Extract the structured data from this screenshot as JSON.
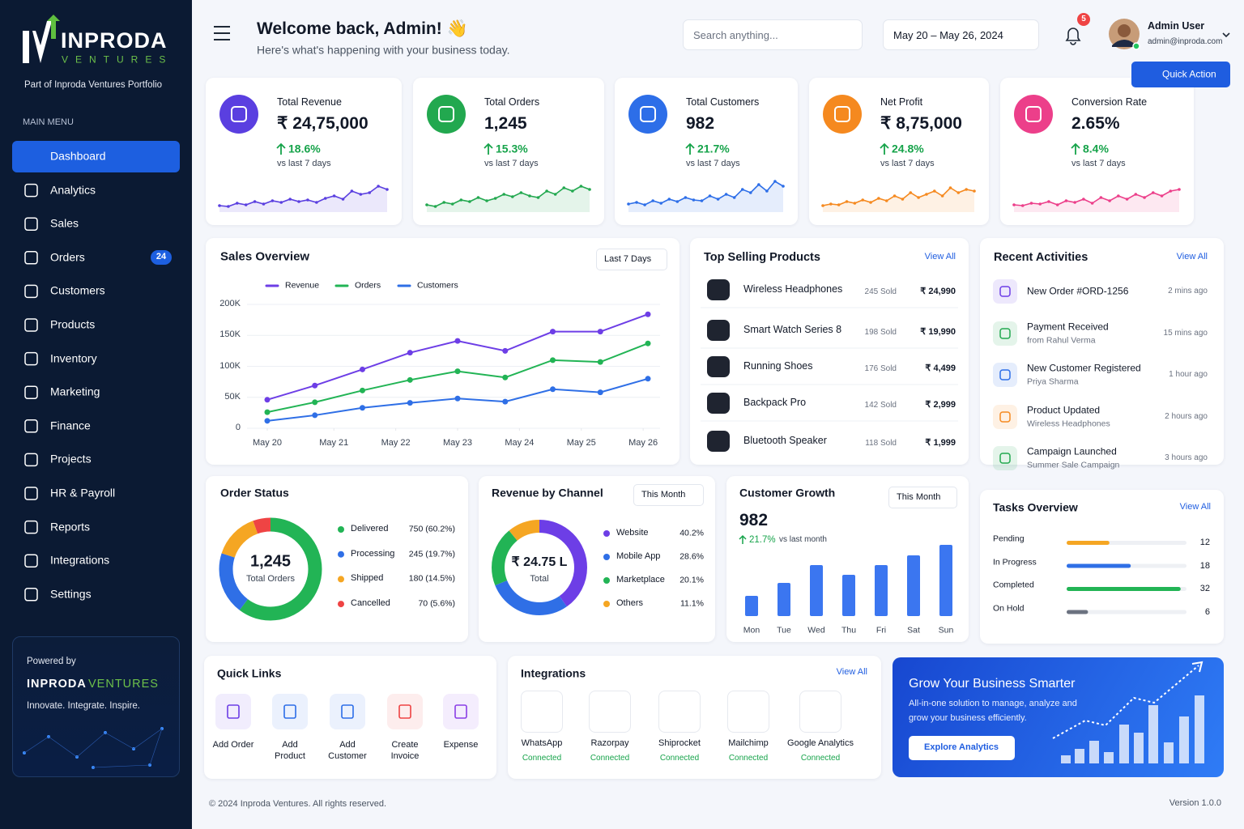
{
  "sidebar": {
    "brand": "INPRODA",
    "brand_sub": "VENTURES",
    "tagline": "Part of Inproda Ventures Portfolio",
    "menu_label": "MAIN MENU",
    "active": 0,
    "menu": [
      {
        "label": "Dashboard"
      },
      {
        "label": "Analytics"
      },
      {
        "label": "Sales"
      },
      {
        "label": "Orders",
        "badge": 24
      },
      {
        "label": "Customers"
      },
      {
        "label": "Products"
      },
      {
        "label": "Inventory"
      },
      {
        "label": "Marketing"
      },
      {
        "label": "Finance"
      },
      {
        "label": "Projects"
      },
      {
        "label": "HR & Payroll"
      },
      {
        "label": "Reports"
      },
      {
        "label": "Integrations"
      },
      {
        "label": "Settings"
      }
    ],
    "powered": {
      "label": "Powered by",
      "name": "INPRODA",
      "accent": "VENTURES",
      "slogan": "Innovate. Integrate. Inspire."
    }
  },
  "header": {
    "title": "Welcome back, Admin! 👋",
    "subtitle": "Here's what's happening with your business today.",
    "search": "Search anything...",
    "date_range": "May 20 – May 26, 2024",
    "notifications": 5,
    "user_name": "Admin User",
    "user_email": "admin@inproda.com",
    "quick_action": "Quick Action"
  },
  "kpis": [
    {
      "label": "Total Revenue",
      "value": "₹ 24,75,000",
      "change": "18.6%",
      "note": "vs last 7 days",
      "color": "#5a3fe0",
      "trend": [
        4,
        3,
        7,
        5,
        9,
        6,
        10,
        8,
        12,
        9,
        11,
        8,
        13,
        16,
        12,
        22,
        18,
        20,
        28,
        24
      ]
    },
    {
      "label": "Total Orders",
      "value": "1,245",
      "change": "15.3%",
      "note": "vs last 7 days",
      "color": "#22a84f",
      "trend": [
        5,
        3,
        8,
        6,
        11,
        9,
        14,
        10,
        13,
        18,
        15,
        20,
        16,
        14,
        22,
        18,
        26,
        22,
        28,
        24
      ]
    },
    {
      "label": "Total Customers",
      "value": "982",
      "change": "21.7%",
      "note": "vs last 7 days",
      "color": "#2d6ee8",
      "trend": [
        6,
        8,
        5,
        10,
        7,
        12,
        9,
        14,
        11,
        10,
        16,
        12,
        18,
        14,
        24,
        20,
        30,
        22,
        34,
        28
      ]
    },
    {
      "label": "Net Profit",
      "value": "₹ 8,75,000",
      "change": "24.8%",
      "note": "vs last 7 days",
      "color": "#f5891f",
      "trend": [
        4,
        6,
        5,
        9,
        7,
        11,
        8,
        13,
        10,
        16,
        12,
        20,
        14,
        18,
        22,
        16,
        26,
        20,
        24,
        22
      ]
    },
    {
      "label": "Conversion Rate",
      "value": "2.65%",
      "change": "8.4%",
      "note": "vs last 7 days",
      "color": "#ec3f8a",
      "trend": [
        5,
        4,
        7,
        6,
        9,
        5,
        10,
        8,
        12,
        7,
        14,
        10,
        16,
        12,
        18,
        14,
        20,
        16,
        22,
        24
      ]
    }
  ],
  "sales_overview": {
    "title": "Sales Overview",
    "filter": "Last 7 Days",
    "chart_data": {
      "type": "line",
      "x": [
        0,
        1,
        2,
        3,
        4,
        5,
        6,
        7,
        8
      ],
      "xlim": [
        0,
        8
      ],
      "xticks": [
        {
          "value": 0,
          "label": "May 20"
        },
        {
          "value": 1.4,
          "label": "May 21"
        },
        {
          "value": 2.7,
          "label": "May 22"
        },
        {
          "value": 4,
          "label": "May 23"
        },
        {
          "value": 5.3,
          "label": "May 24"
        },
        {
          "value": 6.6,
          "label": "May 25"
        },
        {
          "value": 7.9,
          "label": "May 26"
        }
      ],
      "ylim": [
        0,
        200000
      ],
      "yticks": [
        0,
        {
          "value": 50000,
          "label": "50K"
        },
        {
          "value": 100000,
          "label": "100K"
        },
        {
          "value": 150000,
          "label": "150K"
        },
        {
          "value": 200000,
          "label": "200K"
        }
      ],
      "grid": true,
      "legend": "top",
      "series": [
        {
          "name": "Revenue",
          "color": "#6d3ee6",
          "values": [
            46000,
            69000,
            95000,
            122000,
            141000,
            125000,
            156000,
            156000,
            184000
          ]
        },
        {
          "name": "Orders",
          "color": "#22b455",
          "values": [
            26000,
            42000,
            61000,
            78000,
            92000,
            82000,
            110000,
            107000,
            137000
          ]
        },
        {
          "name": "Customers",
          "color": "#2f6fe6",
          "values": [
            12000,
            21000,
            33000,
            41000,
            48000,
            43000,
            63000,
            58000,
            80000
          ]
        }
      ]
    }
  },
  "top_products": {
    "title": "Top Selling Products",
    "view_all": "View All",
    "items": [
      {
        "name": "Wireless Headphones",
        "sold": "245 Sold",
        "price": "₹ 24,990"
      },
      {
        "name": "Smart Watch Series 8",
        "sold": "198 Sold",
        "price": "₹ 19,990"
      },
      {
        "name": "Running Shoes",
        "sold": "176 Sold",
        "price": "₹ 4,499"
      },
      {
        "name": "Backpack Pro",
        "sold": "142 Sold",
        "price": "₹ 2,999"
      },
      {
        "name": "Bluetooth Speaker",
        "sold": "118 Sold",
        "price": "₹ 1,999"
      }
    ]
  },
  "recent_activities": {
    "title": "Recent Activities",
    "view_all": "View All",
    "items": [
      {
        "title": "New Order #ORD-1256",
        "time": "2 mins ago",
        "color": "#6d3ee6"
      },
      {
        "title": "Payment Received",
        "detail": "from Rahul Verma",
        "time": "15 mins ago",
        "color": "#22a84f"
      },
      {
        "title": "New Customer Registered",
        "detail": "Priya Sharma",
        "time": "1 hour ago",
        "color": "#2d6ee8"
      },
      {
        "title": "Product Updated",
        "detail": "Wireless Headphones",
        "time": "2 hours ago",
        "color": "#f5891f"
      },
      {
        "title": "Campaign Launched",
        "detail": "Summer Sale Campaign",
        "time": "3 hours ago",
        "color": "#22a84f"
      }
    ]
  },
  "order_status": {
    "title": "Order Status",
    "chart_data": {
      "type": "pie",
      "donut": true,
      "center_value": "1,245",
      "center_label": "Total Orders",
      "categories": [
        "Delivered",
        "Processing",
        "Shipped",
        "Cancelled"
      ],
      "values": [
        750,
        245,
        180,
        70
      ],
      "value_labels": [
        "750 (60.2%)",
        "245 (19.7%)",
        "180 (14.5%)",
        "70 (5.6%)"
      ],
      "colors": [
        "#22b455",
        "#2f6fe6",
        "#f5a623",
        "#ef4444"
      ]
    }
  },
  "revenue_channel": {
    "title": "Revenue by Channel",
    "filter": "This Month",
    "chart_data": {
      "type": "pie",
      "donut": true,
      "center_value": "₹ 24.75 L",
      "center_label": "Total",
      "categories": [
        "Website",
        "Mobile App",
        "Marketplace",
        "Others"
      ],
      "values": [
        40.2,
        28.6,
        20.1,
        11.1
      ],
      "value_labels": [
        "40.2%",
        "28.6%",
        "20.1%",
        "11.1%"
      ],
      "colors": [
        "#6d3ee6",
        "#2f6fe6",
        "#22b455",
        "#f5a623"
      ]
    }
  },
  "customer_growth": {
    "title": "Customer Growth",
    "filter": "This Month",
    "value": "982",
    "change": "21.7%",
    "note": "vs last month",
    "chart_data": {
      "type": "bar",
      "categories": [
        "Mon",
        "Tue",
        "Wed",
        "Thu",
        "Fri",
        "Sat",
        "Sun"
      ],
      "values": [
        25,
        41,
        63,
        51,
        63,
        75,
        88
      ],
      "color": "#3b76f0"
    }
  },
  "tasks": {
    "title": "Tasks Overview",
    "view_all": "View All",
    "items": [
      {
        "label": "Pending",
        "value": 12,
        "color": "#f5a623"
      },
      {
        "label": "In Progress",
        "value": 18,
        "color": "#2f6fe6"
      },
      {
        "label": "Completed",
        "value": 32,
        "color": "#22b455"
      },
      {
        "label": "On Hold",
        "value": 6,
        "color": "#6b7280"
      }
    ]
  },
  "quick_links": {
    "title": "Quick Links",
    "items": [
      {
        "label": "Add Order",
        "color": "#6d3ee6"
      },
      {
        "label": "Add Product",
        "color": "#2d6ee8"
      },
      {
        "label": "Add Customer",
        "color": "#2d6ee8"
      },
      {
        "label": "Create Invoice",
        "color": "#ef4444"
      },
      {
        "label": "Expense",
        "color": "#8b3ee6"
      }
    ]
  },
  "integrations": {
    "title": "Integrations",
    "view_all": "View All",
    "items": [
      {
        "name": "WhatsApp",
        "status": "Connected",
        "color": "#25d366"
      },
      {
        "name": "Razorpay",
        "status": "Connected",
        "color": "#1f4fd8"
      },
      {
        "name": "Shiprocket",
        "status": "Connected",
        "color": "#6d3ee6"
      },
      {
        "name": "Mailchimp",
        "status": "Connected",
        "color": "#f7c51c"
      },
      {
        "name": "Google Analytics",
        "status": "Connected",
        "color": "#f5891f"
      }
    ]
  },
  "promo": {
    "title": "Grow Your Business Smarter",
    "text": "All-in-one solution to manage, analyze and grow your business efficiently.",
    "button": "Explore Analytics"
  },
  "footer": {
    "copyright": "© 2024 Inproda Ventures. All rights reserved.",
    "version": "Version 1.0.0"
  }
}
